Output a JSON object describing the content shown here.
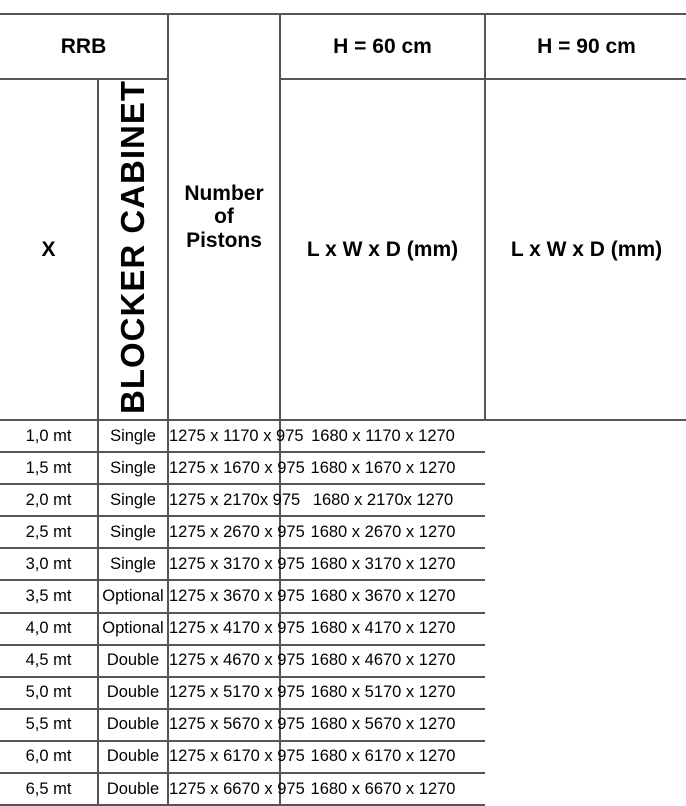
{
  "header": {
    "rrb": "RRB",
    "pistons_line1": "Number",
    "pistons_line2": "of",
    "pistons_line3": "Pistons",
    "h60": "H = 60 cm",
    "h90": "H = 90 cm",
    "x": "X",
    "dims60": "L x W x D (mm)",
    "dims90": "L x W x D (mm)"
  },
  "blocker_label": "BLOCKER CABINET",
  "rows": [
    {
      "x": "1,0 mt",
      "pistons": "Single",
      "h60": "1275 x 1170 x 975",
      "h90": "1680 x 1170 x 1270"
    },
    {
      "x": "1,5 mt",
      "pistons": "Single",
      "h60": "1275 x 1670 x 975",
      "h90": "1680 x 1670 x 1270"
    },
    {
      "x": "2,0 mt",
      "pistons": "Single",
      "h60": "1275 x 2170x 975",
      "h90": "1680 x 2170x 1270"
    },
    {
      "x": "2,5 mt",
      "pistons": "Single",
      "h60": "1275 x 2670 x 975",
      "h90": "1680 x 2670 x 1270"
    },
    {
      "x": "3,0 mt",
      "pistons": "Single",
      "h60": "1275 x 3170 x 975",
      "h90": "1680 x 3170 x 1270"
    },
    {
      "x": "3,5 mt",
      "pistons": "Optional",
      "h60": "1275 x 3670 x 975",
      "h90": "1680 x 3670 x 1270"
    },
    {
      "x": "4,0 mt",
      "pistons": "Optional",
      "h60": "1275 x 4170 x 975",
      "h90": "1680 x 4170 x 1270"
    },
    {
      "x": "4,5 mt",
      "pistons": "Double",
      "h60": "1275 x 4670 x 975",
      "h90": "1680 x 4670 x 1270"
    },
    {
      "x": "5,0 mt",
      "pistons": "Double",
      "h60": "1275 x 5170 x 975",
      "h90": "1680 x 5170 x 1270"
    },
    {
      "x": "5,5 mt",
      "pistons": "Double",
      "h60": "1275 x 5670 x 975",
      "h90": "1680 x 5670 x 1270"
    },
    {
      "x": "6,0 mt",
      "pistons": "Double",
      "h60": "1275 x 6170 x 975",
      "h90": "1680 x 6170 x 1270"
    },
    {
      "x": "6,5 mt",
      "pistons": "Double",
      "h60": "1275 x 6670 x 975",
      "h90": "1680 x 6670 x 1270"
    }
  ]
}
